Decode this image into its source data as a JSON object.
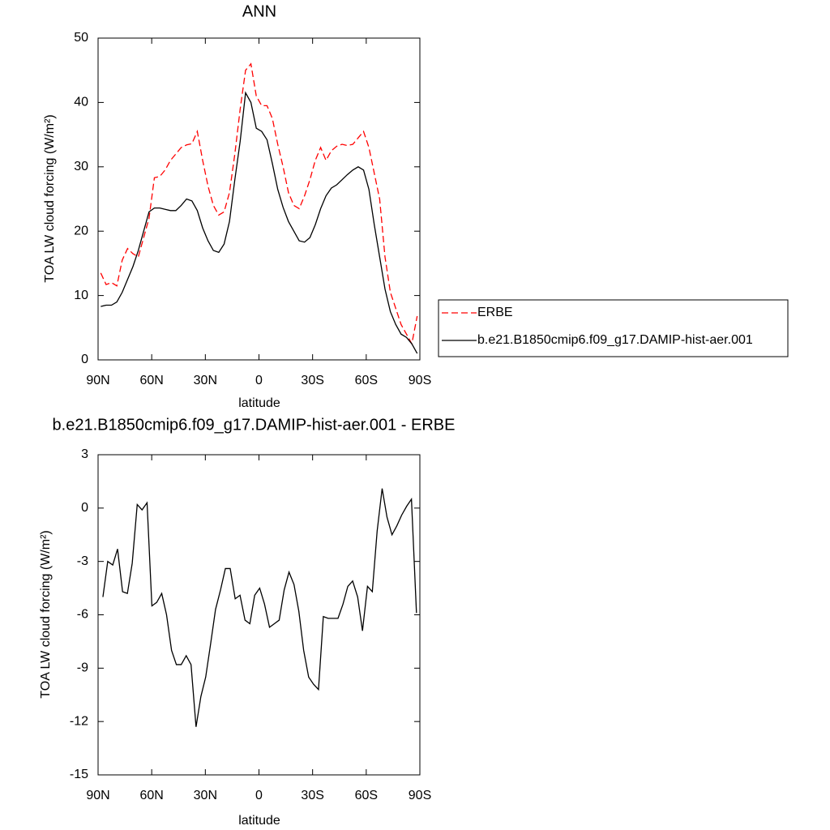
{
  "chart_data": [
    {
      "type": "line",
      "title": "ANN",
      "x_label": "latitude",
      "y_label": "TOA LW cloud forcing (W/m²)",
      "x": [
        88.5,
        85.5,
        82.5,
        79.5,
        76.5,
        73.5,
        70.5,
        67.5,
        64.5,
        61.5,
        58.5,
        55.5,
        52.5,
        49.5,
        46.5,
        43.5,
        40.5,
        37.5,
        34.5,
        31.5,
        28.5,
        25.5,
        22.5,
        19.5,
        16.5,
        13.5,
        10.5,
        7.5,
        4.5,
        1.5,
        -1.5,
        -4.5,
        -7.5,
        -10.5,
        -13.5,
        -16.5,
        -19.5,
        -22.5,
        -25.5,
        -28.5,
        -31.5,
        -34.5,
        -37.5,
        -40.5,
        -43.5,
        -46.5,
        -49.5,
        -52.5,
        -55.5,
        -58.5,
        -61.5,
        -64.5,
        -67.5,
        -70.5,
        -73.5,
        -76.5,
        -79.5,
        -82.5,
        -85.5,
        -88.5
      ],
      "series": [
        {
          "name": "ERBE",
          "color": "#ff0000",
          "dash": "dashed",
          "values": [
            13.5,
            11.7,
            12,
            11.5,
            15.5,
            17.3,
            16.5,
            16,
            19,
            22,
            28.3,
            28.5,
            29.5,
            31,
            32,
            33,
            33.4,
            33.6,
            35.5,
            31,
            27,
            24,
            22.5,
            23,
            26,
            32,
            39,
            45,
            46,
            41,
            39.5,
            39.5,
            37.5,
            33.5,
            30,
            26,
            24,
            23.5,
            25.5,
            28,
            31,
            33,
            31,
            32.5,
            33.2,
            33.5,
            33.3,
            33.5,
            34.5,
            35.5,
            33,
            29,
            25,
            16,
            10.5,
            8,
            5.5,
            4,
            2.5,
            6.8
          ]
        },
        {
          "name": "b.e21.B1850cmip6.f09_g17.DAMIP-hist-aer.001",
          "color": "#000000",
          "dash": "solid",
          "values": [
            8.3,
            8.5,
            8.5,
            9,
            10.5,
            12.5,
            14.5,
            17,
            20,
            23,
            23.6,
            23.6,
            23.4,
            23.2,
            23.2,
            24,
            25,
            24.7,
            23.2,
            20.5,
            18.5,
            17,
            16.7,
            18,
            21.5,
            28,
            34,
            41.5,
            40,
            36,
            35.5,
            34.2,
            30.5,
            26.5,
            23.7,
            21.5,
            20,
            18.5,
            18.3,
            19,
            21,
            23.5,
            25.5,
            26.7,
            27.2,
            28,
            28.8,
            29.5,
            30,
            29.5,
            26.5,
            21,
            16,
            11,
            7.5,
            5.5,
            4,
            3.5,
            2.5,
            1
          ]
        }
      ],
      "xlim": [
        90,
        -90
      ],
      "xticks": [
        {
          "value": 90,
          "label": "90N"
        },
        {
          "value": 60,
          "label": "60N"
        },
        {
          "value": 30,
          "label": "30N"
        },
        0,
        {
          "value": -30,
          "label": "30S"
        },
        {
          "value": -60,
          "label": "60S"
        },
        {
          "value": -90,
          "label": "90S"
        }
      ],
      "ylim": [
        0,
        50
      ],
      "yticks": [
        0,
        10,
        20,
        30,
        40,
        50
      ],
      "legend": "right"
    },
    {
      "type": "line",
      "title": "b.e21.B1850cmip6.f09_g17.DAMIP-hist-aer.001 - ERBE",
      "x_label": "latitude",
      "y_label": "TOA LW cloud forcing (W/m²)",
      "x": [
        87.3,
        84.6,
        81.8,
        79.1,
        76.3,
        73.6,
        70.9,
        68.1,
        65.4,
        62.6,
        59.9,
        57.2,
        54.4,
        51.7,
        48.9,
        46.2,
        43.5,
        40.7,
        38.0,
        35.2,
        32.5,
        29.8,
        27.0,
        24.3,
        21.5,
        18.8,
        16.1,
        13.3,
        10.6,
        7.8,
        5.1,
        2.4,
        -0.4,
        -3.1,
        -5.9,
        -8.6,
        -11.3,
        -14.1,
        -16.8,
        -19.6,
        -22.3,
        -25.0,
        -27.8,
        -30.5,
        -33.3,
        -36.0,
        -38.7,
        -41.5,
        -44.2,
        -47.0,
        -49.7,
        -52.4,
        -55.2,
        -57.9,
        -60.7,
        -63.4,
        -66.1,
        -68.9,
        -71.6,
        -74.4,
        -77.1,
        -79.8,
        -82.6,
        -85.3,
        -88.1
      ],
      "values": [
        -5,
        -3,
        -3.2,
        -2.3,
        -4.7,
        -4.8,
        -3.1,
        0.2,
        -0.1,
        0.3,
        -5.5,
        -5.3,
        -4.8,
        -6,
        -8,
        -8.8,
        -8.8,
        -8.3,
        -8.8,
        -12.3,
        -10.6,
        -9.5,
        -7.6,
        -5.7,
        -4.6,
        -3.4,
        -3.4,
        -5.1,
        -4.9,
        -6.3,
        -6.5,
        -4.9,
        -4.5,
        -5.4,
        -6.7,
        -6.5,
        -6.3,
        -4.6,
        -3.6,
        -4.3,
        -5.8,
        -8,
        -9.5,
        -9.9,
        -10.2,
        -6.1,
        -6.2,
        -6.2,
        -6.2,
        -5.4,
        -4.4,
        -4.1,
        -5,
        -6.9,
        -4.4,
        -4.7,
        -1.3,
        1.1,
        -0.5,
        -1.5,
        -1.0,
        -0.4,
        0.1,
        0.5,
        -5.9
      ],
      "color": "#000000",
      "xlim": [
        90,
        -90
      ],
      "xticks": [
        {
          "value": 90,
          "label": "90N"
        },
        {
          "value": 60,
          "label": "60N"
        },
        {
          "value": 30,
          "label": "30N"
        },
        0,
        {
          "value": -30,
          "label": "30S"
        },
        {
          "value": -60,
          "label": "60S"
        },
        {
          "value": -90,
          "label": "90S"
        }
      ],
      "ylim": [
        -15,
        3
      ],
      "yticks": [
        3,
        0,
        -3,
        -6,
        -9,
        -12,
        -15
      ]
    }
  ]
}
